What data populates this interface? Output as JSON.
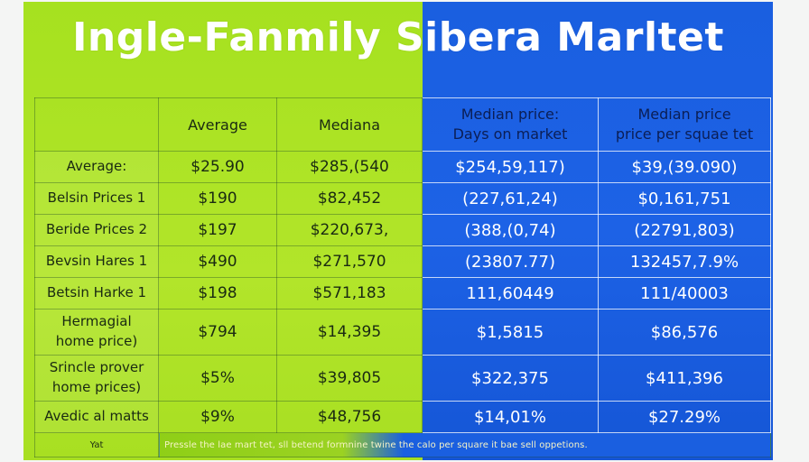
{
  "title": "Ingle-Fanmily Sibera Marltet",
  "colors": {
    "left_panel": "#a6e11f",
    "right_panel": "#1a5fe0",
    "text_on_blue": "#ffffff"
  },
  "table": {
    "headers": [
      "",
      "Average",
      "Mediana",
      "Median price:\nDays on market",
      "Median price\nprice per squae tet"
    ],
    "rows": [
      {
        "label": "Average:",
        "cells": [
          "$25.90",
          "$285,(540",
          "$254,59,117)",
          "$39,(39.090)"
        ]
      },
      {
        "label": "Belsin Prices 1",
        "cells": [
          "$190",
          "$82,452",
          "(227,61,24)",
          "$0,161,751"
        ]
      },
      {
        "label": "Beride Prices 2",
        "cells": [
          "$197",
          "$220,673,",
          "(388,(0,74)",
          "(22791,803)"
        ]
      },
      {
        "label": "Bevsin Hares 1",
        "cells": [
          "$490",
          "$271,570",
          "(23807.77)",
          "132457,7.9%"
        ]
      },
      {
        "label": "Betsin Harke 1",
        "cells": [
          "$198",
          "$571,183",
          "111,60449",
          "111/40003"
        ]
      },
      {
        "label": "Hermagial\nhome price)",
        "cells": [
          "$794",
          "$14,395",
          "$1,5815",
          "$86,576"
        ]
      },
      {
        "label": "Srincle prover\nhome prices)",
        "cells": [
          "$5%",
          "$39,805",
          "$322,375",
          "$411,396"
        ]
      },
      {
        "label": "Avedic al matts",
        "cells": [
          "$9%",
          "$48,756",
          "$14,01%",
          "$27.29%"
        ]
      }
    ],
    "footer": {
      "label": "Yat",
      "note": "Pressle the lae mart tet, sll betend formnine twine the calo per square it bae sell oppetions."
    }
  }
}
